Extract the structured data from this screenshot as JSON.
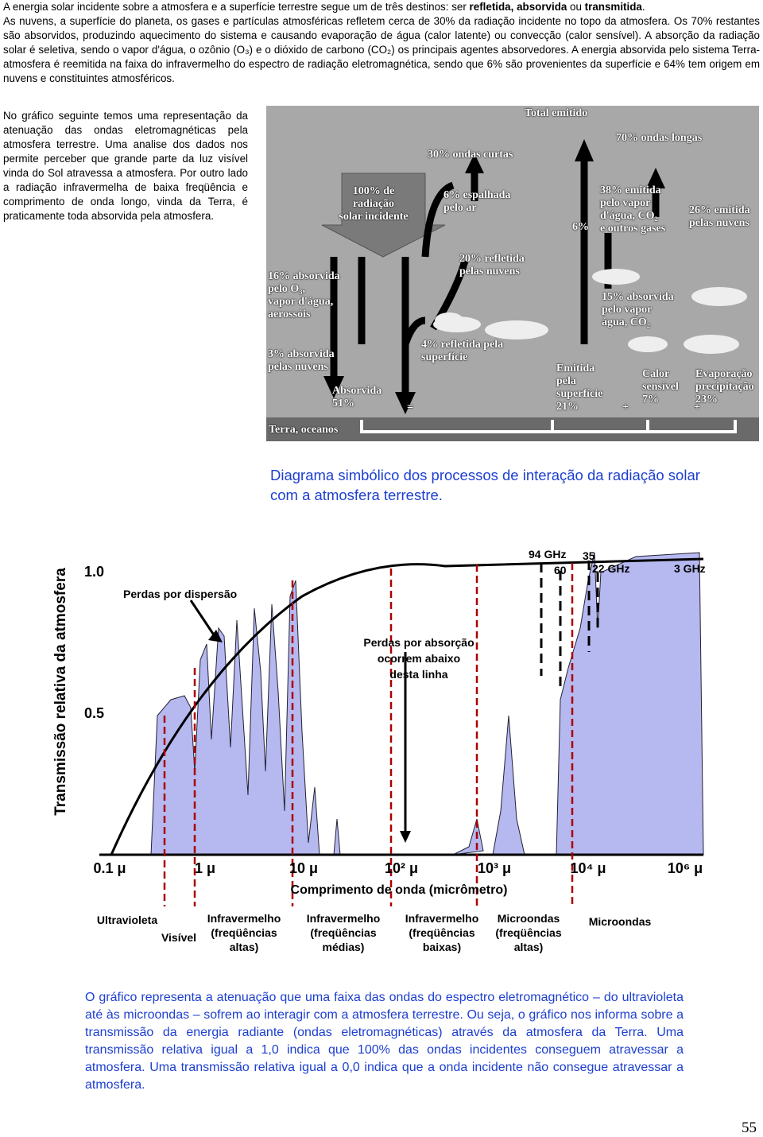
{
  "intro": {
    "runs": [
      "A energia solar incidente sobre a atmosfera e a superfície terrestre segue um de três destinos: ser ",
      "refletida, absorvida",
      " ou ",
      "transmitida",
      "."
    ]
  },
  "paragraph": "As nuvens, a superfície do planeta, os gases e partículas atmosféricas refletem cerca de 30% da radiação incidente no topo da atmosfera. Os 70% restantes são absorvidos, produzindo aquecimento do sistema e causando evaporação de água (calor latente) ou convecção (calor sensível). A absorção da radiação solar é seletiva, sendo o vapor d'água, o ozônio (O₃) e o dióxido de carbono (CO₂) os principais agentes absorvedores. A energia absorvida pelo sistema Terra-atmosfera é reemitida na faixa do infravermelho do espectro de radiação eletromagnética, sendo que 6% são provenientes da superfície e 64% tem origem em nuvens e constituintes atmosféricos.",
  "side_text": "No gráfico seguinte temos uma representação da atenuação das ondas eletromagnéticas pela atmosfera terrestre. Uma analise dos dados nos permite perceber que grande parte da luz visível vinda do Sol atravessa a atmosfera. Por outro lado a radiação infravermelha de baixa freqüência e comprimento de onda longo, vinda da Terra, é praticamente toda absorvida pela atmosfera.",
  "diagram": {
    "labels": [
      [
        "Total emitido"
      ],
      [
        "30% ondas curtas"
      ],
      [
        "70% ondas longas"
      ],
      [
        "100% de",
        "radiação",
        "solar incidente"
      ],
      [
        "6% espalhada",
        "pelo ar"
      ],
      [
        "38% emitida",
        "pelo vapor",
        "d'água, CO₂",
        "e outros gases"
      ],
      [
        "26% emitida",
        "pelas nuvens"
      ],
      [
        "6%"
      ],
      [
        "20% refletida",
        "pelas nuvens"
      ],
      [
        "16% absorvida",
        "pelo O₃,",
        "vapor d'água,",
        "aerossóis"
      ],
      [
        "15% absorvida",
        "pelo vapor",
        "água, CO₂"
      ],
      [
        "3% absorvida",
        "pelas nuvens"
      ],
      [
        "4% refletida pela",
        "superfície"
      ],
      [
        "Absorvida",
        "51%"
      ],
      [
        "="
      ],
      [
        "Emitida",
        "pela",
        "superfície",
        "21%"
      ],
      [
        "+"
      ],
      [
        "Calor",
        "sensível",
        "7%"
      ],
      [
        "+"
      ],
      [
        "Evaporação",
        "precipitação",
        "23%"
      ],
      [
        "Terra, oceanos"
      ]
    ],
    "caption": [
      "Diagrama simbólico dos processos de interação da radiação solar",
      "com a atmosfera terrestre."
    ]
  },
  "spectrum": {
    "y_label": "Transmissão relativa da atmosfera",
    "y_ticks": [
      "1.0",
      "0.5"
    ],
    "x_ticks": [
      "0.1 μ",
      "1 μ",
      "10 μ",
      "10² μ",
      "10³ μ",
      "10⁴ μ",
      "10⁶ μ"
    ],
    "x_label": "Comprimento de onda (micrômetro)",
    "annotations": [
      [
        "Perdas por dispersão"
      ],
      [
        "Perdas por absorção",
        "ocorrem abaixo",
        "desta linha"
      ],
      [
        "94 GHz"
      ],
      [
        "60"
      ],
      [
        "35"
      ],
      [
        "22 GHz"
      ],
      [
        "3 GHz"
      ]
    ],
    "bands": [
      [
        "Ultravioleta"
      ],
      [
        "Visível"
      ],
      [
        "Infravermelho",
        "(freqüências",
        "altas)"
      ],
      [
        "Infravermelho",
        "(freqüências",
        "médias)"
      ],
      [
        "Infravermelho",
        "(freqüências",
        "baixas)"
      ],
      [
        "Microondas",
        "(freqüências",
        "altas)"
      ],
      [
        "Microondas"
      ]
    ]
  },
  "explanation": "O gráfico representa a atenuação que uma faixa das ondas do espectro eletromagnético – do ultravioleta até às microondas – sofrem ao interagir com a atmosfera terrestre. Ou seja, o gráfico nos informa sobre a transmissão da energia radiante (ondas eletromagnéticas) através da atmosfera da Terra. Uma transmissão relativa igual a 1,0 indica que 100% das ondas incidentes conseguem atravessar a atmosfera. Uma transmissão relativa igual a 0,0 indica que a onda incidente não consegue atravessar a atmosfera.",
  "page_number": "55"
}
